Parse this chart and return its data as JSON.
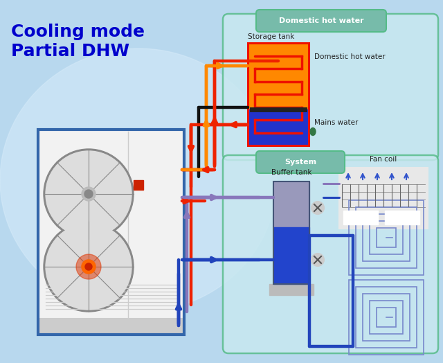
{
  "title_line1": "Cooling mode",
  "title_line2": "Partial DHW",
  "title_color": "#0000CC",
  "bg_color": "#B8D8EE",
  "dhw_label": "Domestic hot water",
  "system_label": "System",
  "storage_tank_label": "Storage tank",
  "domestic_hw_label": "Domestic hot water",
  "mains_water_label": "Mains water",
  "buffer_tank_label": "Buffer tank",
  "fan_coil_label": "Fan coil",
  "pipe_red": "#EE2200",
  "pipe_orange": "#FF8800",
  "pipe_blue": "#2244CC",
  "pipe_purple": "#8877BB",
  "pipe_black": "#111111",
  "tank_orange": "#FF8C00",
  "tank_blue": "#1133BB",
  "box_edge": "#55BB88",
  "box_face_dhw": "#C8E8F0",
  "box_face_sys": "#C8E8F0",
  "box_pill": "#77BBAA",
  "unit_border": "#3366AA",
  "unit_bg": "#F0F0F0",
  "fan_ring": "#888888",
  "fan_dark": "#555555"
}
